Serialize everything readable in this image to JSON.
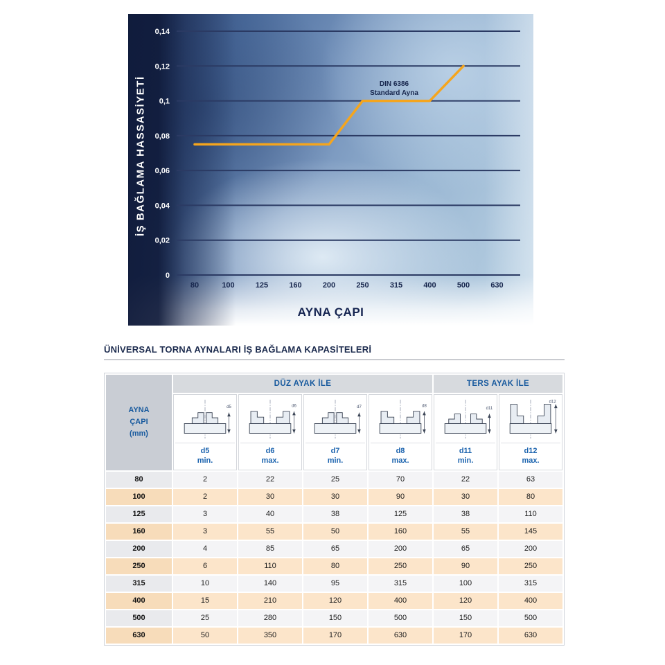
{
  "colors": {
    "series_orange": "#F5A51D",
    "header_blue": "#185a9e",
    "navy": "#17264d",
    "row_peach": "#fce5ca",
    "row_gray": "#f4f4f6",
    "gridline_navy": "#2b3a63"
  },
  "chart_data": [
    {
      "type": "line",
      "title": "",
      "xlabel": "AYNA ÇAPI",
      "ylabel": "İŞ BAĞLAMA HASSASİYETİ",
      "categories": [
        "80",
        "100",
        "125",
        "160",
        "200",
        "250",
        "315",
        "400",
        "500",
        "630"
      ],
      "ylim": [
        0,
        0.14
      ],
      "y_ticks": [
        {
          "value": 0.14,
          "label": "0,14"
        },
        {
          "value": 0.12,
          "label": "0,12"
        },
        {
          "value": 0.1,
          "label": "0,1"
        },
        {
          "value": 0.08,
          "label": "0,08"
        },
        {
          "value": 0.06,
          "label": "0,06"
        },
        {
          "value": 0.04,
          "label": "0,04"
        },
        {
          "value": 0.02,
          "label": "0,02"
        },
        {
          "value": 0,
          "label": "0"
        }
      ],
      "grid": "horizontal",
      "legend": "none",
      "series": [
        {
          "name": "DIN 6386 Standard Ayna",
          "color": "#F5A51D",
          "points_xy": [
            [
              "80",
              0.075
            ],
            [
              "200",
              0.075
            ],
            [
              "250",
              0.1
            ],
            [
              "400",
              0.1
            ],
            [
              "500",
              0.12
            ]
          ]
        }
      ],
      "annotation": {
        "lines": [
          "DIN 6386",
          "Standard Ayna"
        ],
        "anchor_category": "315",
        "anchor_value": 0.1085
      }
    },
    {
      "type": "table",
      "title": "ÜNİVERSAL TORNA AYNALARI İŞ BAĞLAMA KAPASİTELERİ",
      "row_header": "AYNA\nÇAPI\n(mm)",
      "groups": [
        {
          "label": "DÜZ AYAK İLE",
          "span": 4
        },
        {
          "label": "TERS AYAK İLE",
          "span": 2
        }
      ],
      "columns": [
        {
          "dim": "d5",
          "limit": "min."
        },
        {
          "dim": "d6",
          "limit": "max."
        },
        {
          "dim": "d7",
          "limit": "min."
        },
        {
          "dim": "d8",
          "limit": "max."
        },
        {
          "dim": "d11",
          "limit": "min."
        },
        {
          "dim": "d12",
          "limit": "max."
        }
      ],
      "rows": [
        {
          "capi": "80",
          "values": [
            "2",
            "22",
            "25",
            "70",
            "22",
            "63"
          ]
        },
        {
          "capi": "100",
          "values": [
            "2",
            "30",
            "30",
            "90",
            "30",
            "80"
          ]
        },
        {
          "capi": "125",
          "values": [
            "3",
            "40",
            "38",
            "125",
            "38",
            "110"
          ]
        },
        {
          "capi": "160",
          "values": [
            "3",
            "55",
            "50",
            "160",
            "55",
            "145"
          ]
        },
        {
          "capi": "200",
          "values": [
            "4",
            "85",
            "65",
            "200",
            "65",
            "200"
          ]
        },
        {
          "capi": "250",
          "values": [
            "6",
            "110",
            "80",
            "250",
            "90",
            "250"
          ]
        },
        {
          "capi": "315",
          "values": [
            "10",
            "140",
            "95",
            "315",
            "100",
            "315"
          ]
        },
        {
          "capi": "400",
          "values": [
            "15",
            "210",
            "120",
            "400",
            "120",
            "400"
          ]
        },
        {
          "capi": "500",
          "values": [
            "25",
            "280",
            "150",
            "500",
            "150",
            "500"
          ]
        },
        {
          "capi": "630",
          "values": [
            "50",
            "350",
            "170",
            "630",
            "170",
            "630"
          ]
        }
      ]
    }
  ]
}
